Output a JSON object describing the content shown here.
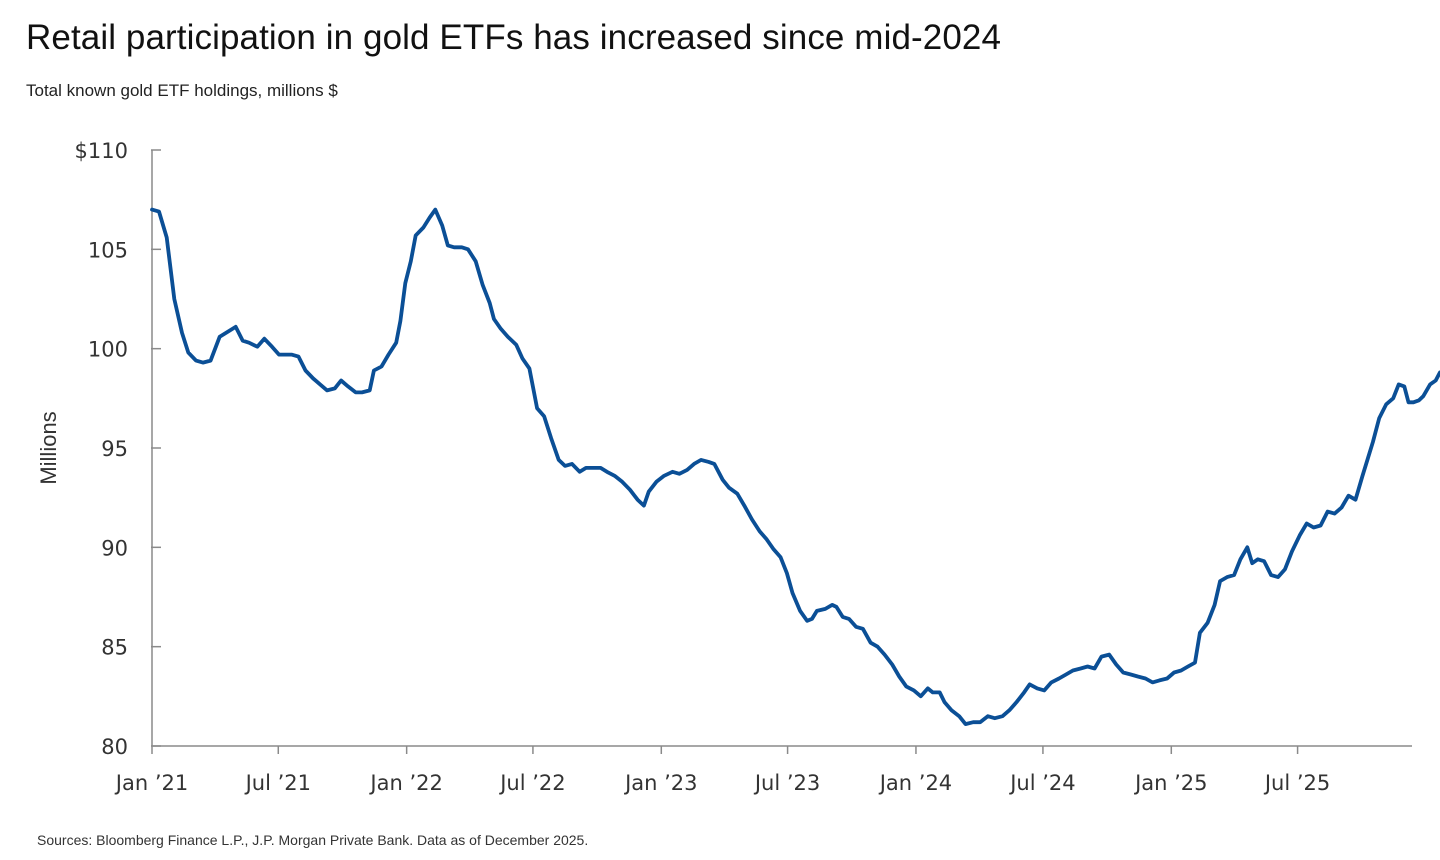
{
  "header": {
    "title": "Retail participation in gold ETFs has increased since mid-2024",
    "subtitle": "Total known gold ETF holdings, millions $"
  },
  "footer": {
    "source": "Sources: Bloomberg Finance L.P., J.P. Morgan Private Bank. Data as of December 2025."
  },
  "colors": {
    "line": "#0b4f96",
    "axis": "#8a8a8a",
    "text": "#333333"
  },
  "chart_data": {
    "type": "line",
    "title": "Retail participation in gold ETFs has increased since mid-2024",
    "subtitle": "Total known gold ETF holdings, millions $",
    "xlabel": "",
    "ylabel": "Millions",
    "ylim": [
      80,
      110
    ],
    "xlim": [
      "2021-01-01",
      "2025-12-12"
    ],
    "grid": false,
    "y_ticks": [
      {
        "value": 80,
        "label": "80"
      },
      {
        "value": 85,
        "label": "85"
      },
      {
        "value": 90,
        "label": "90"
      },
      {
        "value": 95,
        "label": "95"
      },
      {
        "value": 100,
        "label": "100"
      },
      {
        "value": 105,
        "label": "105"
      },
      {
        "value": 110,
        "label": "$110"
      }
    ],
    "x_ticks": [
      {
        "value": "2021-01-01",
        "label": "Jan ’21"
      },
      {
        "value": "2021-07-01",
        "label": "Jul ’21"
      },
      {
        "value": "2022-01-01",
        "label": "Jan ’22"
      },
      {
        "value": "2022-07-01",
        "label": "Jul ’22"
      },
      {
        "value": "2023-01-01",
        "label": "Jan ’23"
      },
      {
        "value": "2023-07-01",
        "label": "Jul ’23"
      },
      {
        "value": "2024-01-01",
        "label": "Jan ’24"
      },
      {
        "value": "2024-07-01",
        "label": "Jul ’24"
      },
      {
        "value": "2025-01-01",
        "label": "Jan ’25"
      },
      {
        "value": "2025-07-01",
        "label": "Jul ’25"
      }
    ],
    "series": [
      {
        "color": "#0b4f96",
        "points": [
          [
            "2021-01-01",
            107.0
          ],
          [
            "2021-01-11",
            106.9
          ],
          [
            "2021-01-22",
            105.6
          ],
          [
            "2021-02-02",
            102.5
          ],
          [
            "2021-02-13",
            100.8
          ],
          [
            "2021-02-22",
            99.8
          ],
          [
            "2021-03-05",
            99.4
          ],
          [
            "2021-03-15",
            99.3
          ],
          [
            "2021-03-26",
            99.4
          ],
          [
            "2021-04-08",
            100.6
          ],
          [
            "2021-04-22",
            100.9
          ],
          [
            "2021-05-01",
            101.1
          ],
          [
            "2021-05-11",
            100.4
          ],
          [
            "2021-05-20",
            100.3
          ],
          [
            "2021-06-01",
            100.1
          ],
          [
            "2021-06-11",
            100.5
          ],
          [
            "2021-06-22",
            100.1
          ],
          [
            "2021-07-02",
            99.7
          ],
          [
            "2021-07-20",
            99.7
          ],
          [
            "2021-07-30",
            99.6
          ],
          [
            "2021-08-09",
            98.9
          ],
          [
            "2021-08-20",
            98.5
          ],
          [
            "2021-08-30",
            98.2
          ],
          [
            "2021-09-09",
            97.9
          ],
          [
            "2021-09-20",
            98.0
          ],
          [
            "2021-09-29",
            98.4
          ],
          [
            "2021-10-09",
            98.1
          ],
          [
            "2021-10-20",
            97.8
          ],
          [
            "2021-10-29",
            97.8
          ],
          [
            "2021-11-09",
            97.9
          ],
          [
            "2021-11-15",
            98.9
          ],
          [
            "2021-11-26",
            99.1
          ],
          [
            "2021-12-06",
            99.7
          ],
          [
            "2021-12-17",
            100.3
          ],
          [
            "2021-12-23",
            101.4
          ],
          [
            "2021-12-30",
            103.3
          ],
          [
            "2022-01-07",
            104.4
          ],
          [
            "2022-01-14",
            105.7
          ],
          [
            "2022-01-25",
            106.1
          ],
          [
            "2022-02-03",
            106.6
          ],
          [
            "2022-02-11",
            107.0
          ],
          [
            "2022-02-21",
            106.2
          ],
          [
            "2022-03-01",
            105.2
          ],
          [
            "2022-03-10",
            105.1
          ],
          [
            "2022-03-21",
            105.1
          ],
          [
            "2022-03-30",
            105.0
          ],
          [
            "2022-04-10",
            104.4
          ],
          [
            "2022-04-20",
            103.2
          ],
          [
            "2022-04-30",
            102.3
          ],
          [
            "2022-05-06",
            101.5
          ],
          [
            "2022-05-16",
            101.0
          ],
          [
            "2022-05-26",
            100.6
          ],
          [
            "2022-06-07",
            100.2
          ],
          [
            "2022-06-16",
            99.5
          ],
          [
            "2022-06-26",
            99.0
          ],
          [
            "2022-07-07",
            97.0
          ],
          [
            "2022-07-17",
            96.6
          ],
          [
            "2022-07-27",
            95.5
          ],
          [
            "2022-08-07",
            94.4
          ],
          [
            "2022-08-16",
            94.1
          ],
          [
            "2022-08-26",
            94.2
          ],
          [
            "2022-09-06",
            93.8
          ],
          [
            "2022-09-15",
            94.0
          ],
          [
            "2022-09-26",
            94.0
          ],
          [
            "2022-10-06",
            94.0
          ],
          [
            "2022-10-15",
            93.8
          ],
          [
            "2022-10-26",
            93.6
          ],
          [
            "2022-11-06",
            93.3
          ],
          [
            "2022-11-17",
            92.9
          ],
          [
            "2022-11-28",
            92.4
          ],
          [
            "2022-12-07",
            92.1
          ],
          [
            "2022-12-14",
            92.8
          ],
          [
            "2022-12-25",
            93.3
          ],
          [
            "2023-01-05",
            93.6
          ],
          [
            "2023-01-17",
            93.8
          ],
          [
            "2023-01-27",
            93.7
          ],
          [
            "2023-02-07",
            93.9
          ],
          [
            "2023-02-17",
            94.2
          ],
          [
            "2023-02-27",
            94.4
          ],
          [
            "2023-03-10",
            94.3
          ],
          [
            "2023-03-18",
            94.2
          ],
          [
            "2023-03-30",
            93.4
          ],
          [
            "2023-04-08",
            93.0
          ],
          [
            "2023-04-20",
            92.7
          ],
          [
            "2023-04-30",
            92.1
          ],
          [
            "2023-05-11",
            91.4
          ],
          [
            "2023-05-22",
            90.8
          ],
          [
            "2023-06-01",
            90.4
          ],
          [
            "2023-06-11",
            89.9
          ],
          [
            "2023-06-21",
            89.5
          ],
          [
            "2023-06-30",
            88.7
          ],
          [
            "2023-07-08",
            87.7
          ],
          [
            "2023-07-19",
            86.8
          ],
          [
            "2023-07-29",
            86.3
          ],
          [
            "2023-08-05",
            86.4
          ],
          [
            "2023-08-12",
            86.8
          ],
          [
            "2023-08-24",
            86.9
          ],
          [
            "2023-09-03",
            87.1
          ],
          [
            "2023-09-09",
            87.0
          ],
          [
            "2023-09-18",
            86.5
          ],
          [
            "2023-09-27",
            86.4
          ],
          [
            "2023-10-07",
            86.0
          ],
          [
            "2023-10-17",
            85.9
          ],
          [
            "2023-10-28",
            85.2
          ],
          [
            "2023-11-07",
            85.0
          ],
          [
            "2023-11-17",
            84.6
          ],
          [
            "2023-11-28",
            84.1
          ],
          [
            "2023-12-08",
            83.5
          ],
          [
            "2023-12-18",
            83.0
          ],
          [
            "2023-12-29",
            82.8
          ],
          [
            "2024-01-08",
            82.5
          ],
          [
            "2024-01-18",
            82.9
          ],
          [
            "2024-01-25",
            82.7
          ],
          [
            "2024-02-04",
            82.7
          ],
          [
            "2024-02-11",
            82.2
          ],
          [
            "2024-02-21",
            81.8
          ],
          [
            "2024-03-03",
            81.5
          ],
          [
            "2024-03-12",
            81.1
          ],
          [
            "2024-03-23",
            81.2
          ],
          [
            "2024-04-02",
            81.2
          ],
          [
            "2024-04-13",
            81.5
          ],
          [
            "2024-04-23",
            81.4
          ],
          [
            "2024-05-04",
            81.5
          ],
          [
            "2024-05-14",
            81.8
          ],
          [
            "2024-05-24",
            82.2
          ],
          [
            "2024-06-04",
            82.7
          ],
          [
            "2024-06-12",
            83.1
          ],
          [
            "2024-06-23",
            82.9
          ],
          [
            "2024-07-03",
            82.8
          ],
          [
            "2024-07-13",
            83.2
          ],
          [
            "2024-07-24",
            83.4
          ],
          [
            "2024-08-03",
            83.6
          ],
          [
            "2024-08-13",
            83.8
          ],
          [
            "2024-08-24",
            83.9
          ],
          [
            "2024-09-03",
            84.0
          ],
          [
            "2024-09-13",
            83.9
          ],
          [
            "2024-09-23",
            84.5
          ],
          [
            "2024-10-04",
            84.6
          ],
          [
            "2024-10-14",
            84.1
          ],
          [
            "2024-10-24",
            83.7
          ],
          [
            "2024-11-04",
            83.6
          ],
          [
            "2024-11-14",
            83.5
          ],
          [
            "2024-11-25",
            83.4
          ],
          [
            "2024-12-05",
            83.2
          ],
          [
            "2024-12-15",
            83.3
          ],
          [
            "2024-12-26",
            83.4
          ],
          [
            "2025-01-05",
            83.7
          ],
          [
            "2025-01-15",
            83.8
          ],
          [
            "2025-01-25",
            84.0
          ],
          [
            "2025-02-04",
            84.2
          ],
          [
            "2025-02-11",
            85.7
          ],
          [
            "2025-02-22",
            86.2
          ],
          [
            "2025-03-04",
            87.1
          ],
          [
            "2025-03-12",
            88.3
          ],
          [
            "2025-03-22",
            88.5
          ],
          [
            "2025-04-01",
            88.6
          ],
          [
            "2025-04-10",
            89.4
          ],
          [
            "2025-04-20",
            90.0
          ],
          [
            "2025-04-27",
            89.2
          ],
          [
            "2025-05-05",
            89.4
          ],
          [
            "2025-05-14",
            89.3
          ],
          [
            "2025-05-24",
            88.6
          ],
          [
            "2025-06-03",
            88.5
          ],
          [
            "2025-06-13",
            88.9
          ],
          [
            "2025-06-23",
            89.8
          ],
          [
            "2025-07-04",
            90.6
          ],
          [
            "2025-07-14",
            91.2
          ],
          [
            "2025-07-24",
            91.0
          ],
          [
            "2025-08-03",
            91.1
          ],
          [
            "2025-08-13",
            91.8
          ],
          [
            "2025-08-23",
            91.7
          ],
          [
            "2025-09-02",
            92.0
          ],
          [
            "2025-09-12",
            92.6
          ],
          [
            "2025-09-22",
            92.4
          ],
          [
            "2025-10-02",
            93.6
          ],
          [
            "2025-10-10",
            94.5
          ],
          [
            "2025-10-17",
            95.3
          ],
          [
            "2025-10-26",
            96.5
          ],
          [
            "2025-11-05",
            97.2
          ],
          [
            "2025-11-15",
            97.5
          ],
          [
            "2025-11-23",
            98.2
          ],
          [
            "2025-12-01",
            98.1
          ],
          [
            "2025-12-07",
            97.3
          ],
          [
            "2025-12-14",
            97.3
          ],
          [
            "2025-12-22",
            97.4
          ],
          [
            "2025-12-28",
            97.6
          ],
          [
            "2026-01-07",
            98.2
          ],
          [
            "2026-01-15",
            98.4
          ],
          [
            "2026-01-21",
            98.8
          ]
        ]
      }
    ]
  }
}
